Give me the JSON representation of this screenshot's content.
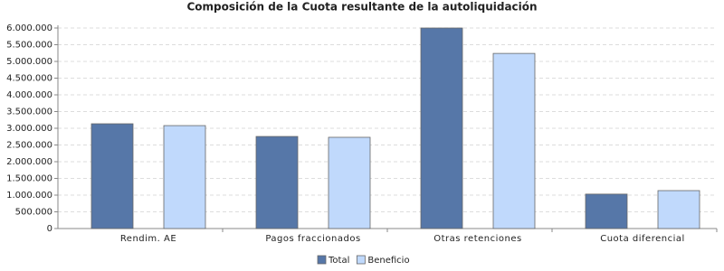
{
  "chart_data": {
    "type": "bar",
    "title": "Composición de la Cuota resultante de la autoliquidación",
    "categories": [
      "Rendim. AE",
      "Pagos fraccionados",
      "Otras retenciones",
      "Cuota diferencial"
    ],
    "series": [
      {
        "name": "Total",
        "color": "#5677a8",
        "values": [
          3135000,
          2755000,
          6000000,
          1030000
        ]
      },
      {
        "name": "Beneficio",
        "color": "#c0d9fc",
        "values": [
          3080000,
          2730000,
          5240000,
          1135000
        ]
      }
    ],
    "ylim": [
      0,
      6000000
    ],
    "yticks": [
      0,
      {
        "value": 500000,
        "label": "500.000"
      },
      {
        "value": 1000000,
        "label": "1.000.000"
      },
      {
        "value": 1500000,
        "label": "1.500.000"
      },
      {
        "value": 2000000,
        "label": "2.000.000"
      },
      {
        "value": 2500000,
        "label": "2.500.000"
      },
      {
        "value": 3000000,
        "label": "3.000.000"
      },
      {
        "value": 3500000,
        "label": "3.500.000"
      },
      {
        "value": 4000000,
        "label": "4.000.000"
      },
      {
        "value": 4500000,
        "label": "4.500.000"
      },
      {
        "value": 5000000,
        "label": "5.000.000"
      },
      {
        "value": 5500000,
        "label": "5.500.000"
      },
      {
        "value": 6000000,
        "label": "6.000.000"
      }
    ],
    "grid": true
  }
}
